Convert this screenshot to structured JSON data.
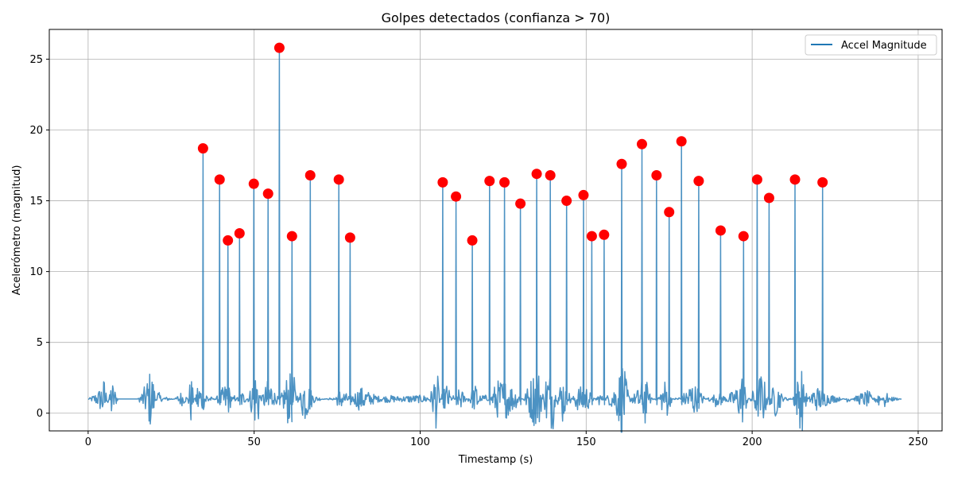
{
  "chart_data": {
    "type": "line",
    "title": "Golpes detectados (confianza > 70)",
    "xlabel": "Timestamp (s)",
    "ylabel": "Acelerómetro (magnitud)",
    "xlim": [
      -11.7,
      257.2
    ],
    "ylim": [
      -1.25,
      27.1
    ],
    "xticks": [
      0,
      50,
      100,
      150,
      200,
      250
    ],
    "yticks": [
      0,
      5,
      10,
      15,
      20,
      25
    ],
    "grid": true,
    "legend_position": "top-right",
    "series": [
      {
        "name": "Accel Magnitude",
        "color": "#1f77b4",
        "baseline": [
          [
            0,
            1.0
          ],
          [
            3,
            1.6
          ],
          [
            5,
            2.8
          ],
          [
            6,
            0.1
          ],
          [
            7,
            2.7
          ],
          [
            9,
            1.0
          ],
          [
            12,
            1.0
          ],
          [
            15,
            1.0
          ],
          [
            17,
            2.0
          ],
          [
            19,
            3.6
          ],
          [
            21,
            0.3
          ],
          [
            23,
            1.2
          ],
          [
            26,
            1.0
          ],
          [
            28,
            1.6
          ],
          [
            30,
            1.1
          ],
          [
            31,
            3.1
          ],
          [
            32,
            0.7
          ],
          [
            33,
            2.4
          ],
          [
            36,
            1.5
          ],
          [
            38,
            0.9
          ],
          [
            42,
            2.5
          ],
          [
            44,
            0.6
          ],
          [
            46,
            1.8
          ],
          [
            48,
            1.0
          ],
          [
            51,
            3.9
          ],
          [
            52,
            1.0
          ],
          [
            55,
            3.2
          ],
          [
            56,
            0.3
          ],
          [
            58,
            1.2
          ],
          [
            60,
            3.0
          ],
          [
            62,
            3.0
          ],
          [
            63,
            0.5
          ],
          [
            65,
            3.0
          ],
          [
            68,
            1.3
          ],
          [
            70,
            1.1
          ],
          [
            73,
            0.9
          ],
          [
            76,
            1.8
          ],
          [
            79,
            1.2
          ],
          [
            82,
            2.0
          ],
          [
            85,
            1.5
          ],
          [
            88,
            1.2
          ],
          [
            91,
            1.3
          ],
          [
            94,
            1.2
          ],
          [
            97,
            1.3
          ],
          [
            100,
            1.3
          ],
          [
            103,
            1.3
          ],
          [
            105,
            3.6
          ],
          [
            106,
            1.0
          ],
          [
            108,
            2.3
          ],
          [
            110,
            0.7
          ],
          [
            112,
            2.0
          ],
          [
            114,
            1.0
          ],
          [
            117,
            2.3
          ],
          [
            119,
            0.5
          ],
          [
            121,
            1.0
          ],
          [
            123,
            2.5
          ],
          [
            126,
            2.5
          ],
          [
            128,
            2.0
          ],
          [
            131,
            1.0
          ],
          [
            133,
            2.4
          ],
          [
            134,
            3.1
          ],
          [
            136,
            3.3
          ],
          [
            137,
            0.4
          ],
          [
            138,
            3.3
          ],
          [
            140,
            3.5
          ],
          [
            141,
            1.0
          ],
          [
            143,
            3.1
          ],
          [
            145,
            0.3
          ],
          [
            147,
            1.9
          ],
          [
            150,
            2.1
          ],
          [
            152,
            1.2
          ],
          [
            154,
            0.5
          ],
          [
            157,
            1.5
          ],
          [
            159,
            2.2
          ],
          [
            161,
            4.1
          ],
          [
            163,
            1.2
          ],
          [
            165,
            1.5
          ],
          [
            168,
            3.2
          ],
          [
            169,
            0.5
          ],
          [
            172,
            1.4
          ],
          [
            174,
            2.8
          ],
          [
            176,
            1.0
          ],
          [
            179,
            1.3
          ],
          [
            182,
            2.5
          ],
          [
            185,
            1.4
          ],
          [
            187,
            0.7
          ],
          [
            189,
            1.6
          ],
          [
            192,
            1.2
          ],
          [
            195,
            1.8
          ],
          [
            197,
            3.1
          ],
          [
            199,
            1.0
          ],
          [
            203,
            3.3
          ],
          [
            205,
            1.0
          ],
          [
            207,
            2.5
          ],
          [
            210,
            0.8
          ],
          [
            212,
            1.0
          ],
          [
            215,
            3.9
          ],
          [
            216,
            0.2
          ],
          [
            218,
            1.8
          ],
          [
            220,
            2.0
          ],
          [
            223,
            1.4
          ],
          [
            226,
            1.2
          ],
          [
            229,
            0.7
          ],
          [
            232,
            1.4
          ],
          [
            235,
            1.7
          ],
          [
            238,
            0.3
          ],
          [
            240,
            1.8
          ],
          [
            242,
            0.8
          ],
          [
            245,
            1.0
          ]
        ],
        "spikes": [
          [
            34.6,
            18.7
          ],
          [
            39.6,
            16.5
          ],
          [
            42.1,
            12.2
          ],
          [
            45.6,
            12.7
          ],
          [
            49.9,
            16.2
          ],
          [
            54.2,
            15.5
          ],
          [
            57.6,
            25.8
          ],
          [
            61.4,
            12.5
          ],
          [
            66.9,
            16.8
          ],
          [
            75.5,
            16.5
          ],
          [
            78.9,
            12.4
          ],
          [
            106.8,
            16.3
          ],
          [
            110.8,
            15.3
          ],
          [
            115.7,
            12.2
          ],
          [
            120.9,
            16.4
          ],
          [
            125.4,
            16.3
          ],
          [
            130.2,
            14.8
          ],
          [
            135.1,
            16.9
          ],
          [
            139.2,
            16.8
          ],
          [
            144.1,
            15.0
          ],
          [
            149.2,
            15.4
          ],
          [
            151.7,
            12.5
          ],
          [
            155.4,
            12.6
          ],
          [
            160.7,
            17.6
          ],
          [
            166.8,
            19.0
          ],
          [
            171.2,
            16.8
          ],
          [
            175.0,
            14.2
          ],
          [
            178.7,
            19.2
          ],
          [
            183.9,
            16.4
          ],
          [
            190.5,
            12.9
          ],
          [
            197.4,
            12.5
          ],
          [
            201.5,
            16.5
          ],
          [
            205.1,
            15.2
          ],
          [
            212.9,
            16.5
          ],
          [
            221.2,
            16.3
          ]
        ]
      },
      {
        "name": "",
        "type": "scatter",
        "color": "#ff0000",
        "points": [
          [
            34.6,
            18.7
          ],
          [
            39.6,
            16.5
          ],
          [
            42.1,
            12.2
          ],
          [
            45.6,
            12.7
          ],
          [
            49.9,
            16.2
          ],
          [
            54.2,
            15.5
          ],
          [
            57.6,
            25.8
          ],
          [
            61.4,
            12.5
          ],
          [
            66.9,
            16.8
          ],
          [
            75.5,
            16.5
          ],
          [
            78.9,
            12.4
          ],
          [
            106.8,
            16.3
          ],
          [
            110.8,
            15.3
          ],
          [
            115.7,
            12.2
          ],
          [
            120.9,
            16.4
          ],
          [
            125.4,
            16.3
          ],
          [
            130.2,
            14.8
          ],
          [
            135.1,
            16.9
          ],
          [
            139.2,
            16.8
          ],
          [
            144.1,
            15.0
          ],
          [
            149.2,
            15.4
          ],
          [
            151.7,
            12.5
          ],
          [
            155.4,
            12.6
          ],
          [
            160.7,
            17.6
          ],
          [
            166.8,
            19.0
          ],
          [
            171.2,
            16.8
          ],
          [
            175.0,
            14.2
          ],
          [
            178.7,
            19.2
          ],
          [
            183.9,
            16.4
          ],
          [
            190.5,
            12.9
          ],
          [
            197.4,
            12.5
          ],
          [
            201.5,
            16.5
          ],
          [
            205.1,
            15.2
          ],
          [
            212.9,
            16.5
          ],
          [
            221.2,
            16.3
          ]
        ]
      }
    ]
  }
}
